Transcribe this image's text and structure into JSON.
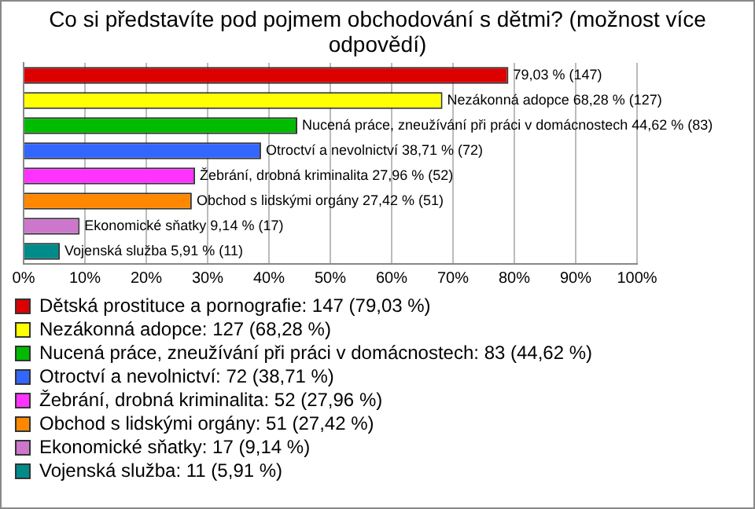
{
  "chart_data": {
    "type": "bar",
    "orientation": "horizontal",
    "title": "Co si představíte pod pojmem obchodování s dětmi? (možnost více odpovědí)",
    "categories": [
      null,
      null,
      null,
      null,
      null,
      null,
      null,
      null
    ],
    "series": [
      {
        "name": "Dětská prostituce a pornografie: 147 (79,03 %)",
        "color": "#dd0000",
        "values": [
          79.03,
          null,
          null,
          null,
          null,
          null,
          null,
          null
        ],
        "value_labels": [
          "79,03 % (147)",
          null,
          null,
          null,
          null,
          null,
          null,
          null
        ]
      },
      {
        "name": "Nezákonná adopce: 127 (68,28 %)",
        "color": "#ffff00",
        "values": [
          null,
          68.28,
          null,
          null,
          null,
          null,
          null,
          null
        ],
        "value_labels": [
          null,
          "Nezákonná adopce 68,28 % (127)",
          null,
          null,
          null,
          null,
          null,
          null
        ]
      },
      {
        "name": "Nucená práce, zneužívání při práci v domácnostech: 83 (44,62 %)",
        "color": "#00bb00",
        "values": [
          null,
          null,
          44.62,
          null,
          null,
          null,
          null,
          null
        ],
        "value_labels": [
          null,
          null,
          "Nucená práce, zneužívání při práci v domácnostech 44,62 % (83)",
          null,
          null,
          null,
          null,
          null
        ]
      },
      {
        "name": "Otroctví a nevolnictví: 72 (38,71 %)",
        "color": "#3366ff",
        "values": [
          null,
          null,
          null,
          38.71,
          null,
          null,
          null,
          null
        ],
        "value_labels": [
          null,
          null,
          null,
          "Otroctví a nevolnictví 38,71 % (72)",
          null,
          null,
          null,
          null
        ]
      },
      {
        "name": "Žebrání, drobná kriminalita: 52 (27,96 %)",
        "color": "#ff33ff",
        "values": [
          null,
          null,
          null,
          null,
          27.96,
          null,
          null,
          null
        ],
        "value_labels": [
          null,
          null,
          null,
          null,
          "Žebrání, drobná kriminalita 27,96 % (52)",
          null,
          null,
          null
        ]
      },
      {
        "name": "Obchod s lidskými orgány: 51 (27,42 %)",
        "color": "#ff8800",
        "values": [
          null,
          null,
          null,
          null,
          null,
          27.42,
          null,
          null
        ],
        "value_labels": [
          null,
          null,
          null,
          null,
          null,
          "Obchod s lidskými orgány 27,42 % (51)",
          null,
          null
        ]
      },
      {
        "name": "Ekonomické sňatky: 17 (9,14 %)",
        "color": "#cc77cc",
        "values": [
          null,
          null,
          null,
          null,
          null,
          null,
          9.14,
          null
        ],
        "value_labels": [
          null,
          null,
          null,
          null,
          null,
          null,
          "Ekonomické sňatky 9,14 % (17)",
          null
        ]
      },
      {
        "name": "Vojenská služba: 11 (5,91 %)",
        "color": "#008b8b",
        "values": [
          null,
          null,
          null,
          null,
          null,
          null,
          null,
          5.91
        ],
        "value_labels": [
          null,
          null,
          null,
          null,
          null,
          null,
          null,
          "Vojenská služba 5,91 % (11)"
        ]
      }
    ],
    "xlim": [
      0,
      100
    ],
    "xticks": [
      {
        "value": 0,
        "label": "0%"
      },
      {
        "value": 10,
        "label": "10%"
      },
      {
        "value": 20,
        "label": "20%"
      },
      {
        "value": 30,
        "label": "30%"
      },
      {
        "value": 40,
        "label": "40%"
      },
      {
        "value": 50,
        "label": "50%"
      },
      {
        "value": 60,
        "label": "60%"
      },
      {
        "value": 70,
        "label": "70%"
      },
      {
        "value": 80,
        "label": "80%"
      },
      {
        "value": 90,
        "label": "90%"
      },
      {
        "value": 100,
        "label": "100%"
      }
    ],
    "tick_labels": "x",
    "grid": "x",
    "legend": "bottom"
  }
}
